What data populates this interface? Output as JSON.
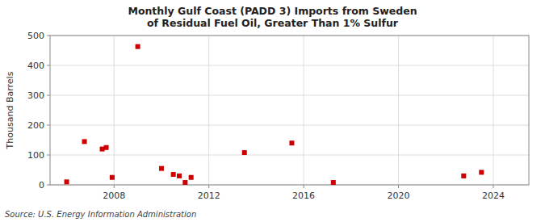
{
  "chart_data": {
    "type": "scatter",
    "title": "Monthly Gulf Coast (PADD 3) Imports from Sweden of Residual Fuel Oil, Greater Than 1% Sulfur",
    "ylabel": "Thousand Barrels",
    "source": "Source: U.S. Energy Information Administration",
    "x": [
      2006.0,
      2006.75,
      2007.5,
      2007.67,
      2007.92,
      2009.0,
      2010.0,
      2010.5,
      2010.75,
      2011.0,
      2011.25,
      2013.5,
      2015.5,
      2017.25,
      2022.75,
      2023.5
    ],
    "values": [
      10,
      145,
      120,
      125,
      25,
      463,
      55,
      35,
      30,
      8,
      25,
      108,
      140,
      8,
      30,
      42
    ],
    "color": "#cc0000",
    "marker": "square",
    "xlim": [
      2005.3,
      2025.5
    ],
    "xticks": [
      2008,
      2012,
      2016,
      2020,
      2024
    ],
    "ylim": [
      0,
      500
    ],
    "yticks": [
      0,
      100,
      200,
      300,
      400,
      500
    ],
    "grid": true
  }
}
